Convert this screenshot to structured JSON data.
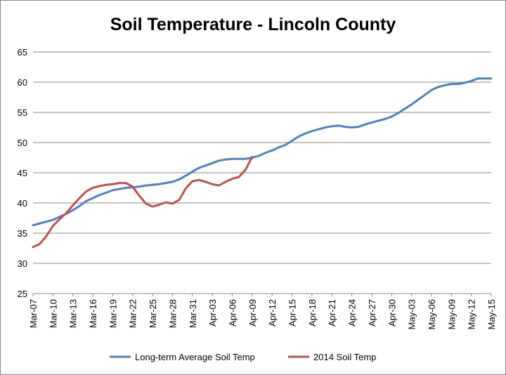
{
  "chart_data": {
    "type": "line",
    "title": "Soil Temperature - Lincoln County",
    "xlabel": "",
    "ylabel": "",
    "ylim": [
      25,
      65
    ],
    "yticks": [
      25,
      30,
      35,
      40,
      45,
      50,
      55,
      60,
      65
    ],
    "grid": true,
    "legend_position": "bottom",
    "x_tick_labels": [
      "Mar-07",
      "Mar-10",
      "Mar-13",
      "Mar-16",
      "Mar-19",
      "Mar-22",
      "Mar-25",
      "Mar-28",
      "Mar-31",
      "Apr-03",
      "Apr-06",
      "Apr-09",
      "Apr-12",
      "Apr-15",
      "Apr-18",
      "Apr-21",
      "Apr-24",
      "Apr-27",
      "Apr-30",
      "May-03",
      "May-06",
      "May-09",
      "May-12",
      "May-15"
    ],
    "x_start": "2014-03-07",
    "x_end": "2014-05-15",
    "series": [
      {
        "name": "Long-term Average Soil Temp",
        "color": "#4f81bd",
        "x": [
          "Mar-07",
          "Mar-08",
          "Mar-09",
          "Mar-10",
          "Mar-11",
          "Mar-12",
          "Mar-13",
          "Mar-14",
          "Mar-15",
          "Mar-16",
          "Mar-17",
          "Mar-18",
          "Mar-19",
          "Mar-20",
          "Mar-21",
          "Mar-22",
          "Mar-23",
          "Mar-24",
          "Mar-25",
          "Mar-26",
          "Mar-27",
          "Mar-28",
          "Mar-29",
          "Mar-30",
          "Mar-31",
          "Apr-01",
          "Apr-02",
          "Apr-03",
          "Apr-04",
          "Apr-05",
          "Apr-06",
          "Apr-07",
          "Apr-08",
          "Apr-09",
          "Apr-10",
          "Apr-11",
          "Apr-12",
          "Apr-13",
          "Apr-14",
          "Apr-15",
          "Apr-16",
          "Apr-17",
          "Apr-18",
          "Apr-19",
          "Apr-20",
          "Apr-21",
          "Apr-22",
          "Apr-23",
          "Apr-24",
          "Apr-25",
          "Apr-26",
          "Apr-27",
          "Apr-28",
          "Apr-29",
          "Apr-30",
          "May-01",
          "May-02",
          "May-03",
          "May-04",
          "May-05",
          "May-06",
          "May-07",
          "May-08",
          "May-09",
          "May-10",
          "May-11",
          "May-12",
          "May-13",
          "May-14",
          "May-15"
        ],
        "values": [
          36.3,
          36.6,
          36.9,
          37.2,
          37.7,
          38.2,
          38.8,
          39.5,
          40.3,
          40.8,
          41.3,
          41.7,
          42.1,
          42.3,
          42.5,
          42.6,
          42.7,
          42.9,
          43.0,
          43.1,
          43.3,
          43.5,
          43.9,
          44.5,
          45.2,
          45.8,
          46.2,
          46.6,
          47.0,
          47.2,
          47.3,
          47.3,
          47.3,
          47.5,
          47.8,
          48.3,
          48.7,
          49.2,
          49.6,
          50.3,
          51.0,
          51.5,
          51.9,
          52.2,
          52.5,
          52.7,
          52.8,
          52.6,
          52.5,
          52.6,
          53.0,
          53.3,
          53.6,
          53.9,
          54.3,
          54.9,
          55.6,
          56.3,
          57.1,
          57.9,
          58.7,
          59.2,
          59.5,
          59.7,
          59.7,
          59.9,
          60.2,
          60.6,
          60.6,
          60.6
        ]
      },
      {
        "name": "2014 Soil Temp",
        "color": "#c0504d",
        "x": [
          "Mar-07",
          "Mar-08",
          "Mar-09",
          "Mar-10",
          "Mar-11",
          "Mar-12",
          "Mar-13",
          "Mar-14",
          "Mar-15",
          "Mar-16",
          "Mar-17",
          "Mar-18",
          "Mar-19",
          "Mar-20",
          "Mar-21",
          "Mar-22",
          "Mar-23",
          "Mar-24",
          "Mar-25",
          "Mar-26",
          "Mar-27",
          "Mar-28",
          "Mar-29",
          "Mar-30",
          "Mar-31",
          "Apr-01",
          "Apr-02",
          "Apr-03",
          "Apr-04",
          "Apr-05",
          "Apr-06",
          "Apr-07",
          "Apr-08",
          "Apr-09"
        ],
        "values": [
          32.7,
          33.2,
          34.5,
          36.2,
          37.3,
          38.3,
          39.6,
          40.8,
          41.9,
          42.5,
          42.8,
          43.0,
          43.1,
          43.3,
          43.3,
          42.7,
          41.2,
          39.9,
          39.4,
          39.7,
          40.1,
          39.9,
          40.5,
          42.4,
          43.6,
          43.8,
          43.5,
          43.1,
          42.9,
          43.5,
          44.0,
          44.3,
          45.5,
          47.6
        ]
      }
    ]
  }
}
